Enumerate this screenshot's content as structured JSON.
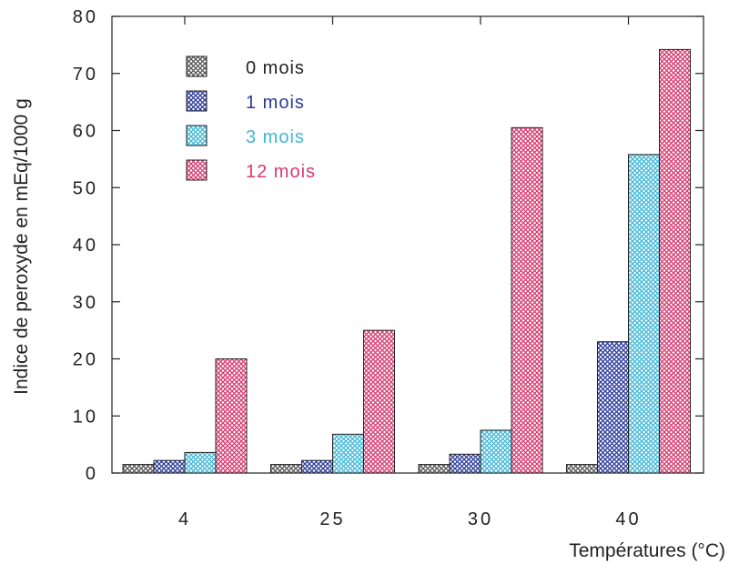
{
  "chart_data": {
    "type": "bar",
    "title": "",
    "xlabel": "Températures  (°C)",
    "ylabel": "Indice de peroxyde en mEq/1000 g",
    "categories": [
      "4",
      "25",
      "30",
      "40"
    ],
    "ylim": [
      0,
      80
    ],
    "yticks": [
      0,
      10,
      20,
      30,
      40,
      50,
      60,
      70,
      80
    ],
    "grid": false,
    "legend_position": "top-left",
    "series": [
      {
        "name": "0 mois",
        "values": [
          1.5,
          1.5,
          1.5,
          1.5
        ],
        "color": "#555555"
      },
      {
        "name": "1 mois",
        "values": [
          2.2,
          2.2,
          3.3,
          23.0
        ],
        "color": "#2b3a9a"
      },
      {
        "name": "3 mois",
        "values": [
          3.6,
          6.8,
          7.5,
          55.8
        ],
        "color": "#3fb8d8"
      },
      {
        "name": "12 mois",
        "values": [
          20.0,
          25.0,
          60.5,
          74.2
        ],
        "color": "#d8386e"
      }
    ]
  }
}
